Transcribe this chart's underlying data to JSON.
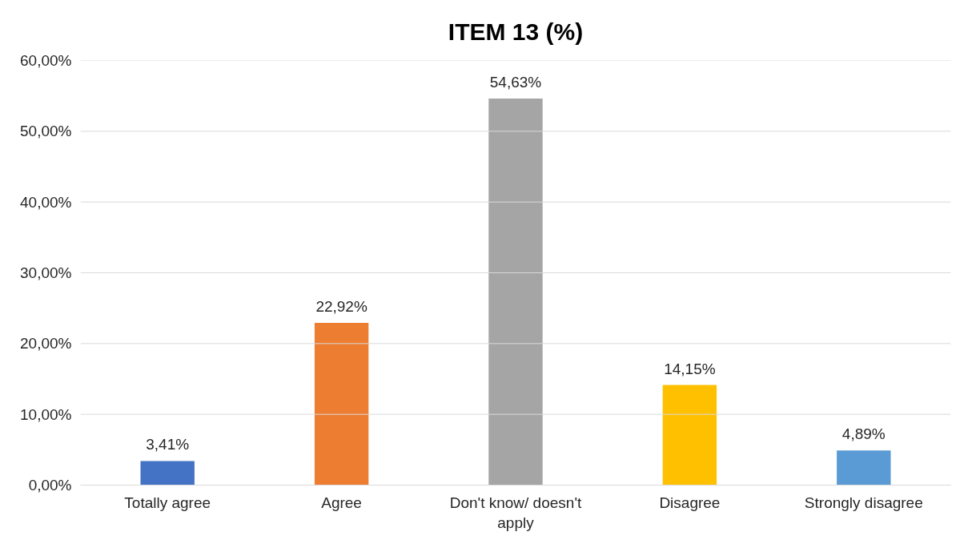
{
  "chart_data": {
    "type": "bar",
    "title": "ITEM 13 (%)",
    "categories": [
      "Totally agree",
      "Agree",
      "Don't know/ doesn't apply",
      "Disagree",
      "Strongly disagree"
    ],
    "values": [
      3.41,
      22.92,
      54.63,
      14.15,
      4.89
    ],
    "colors": [
      "#4472c4",
      "#ed7d31",
      "#a5a5a5",
      "#ffc000",
      "#5b9bd5"
    ],
    "value_labels": [
      "3,41%",
      "22,92%",
      "54,63%",
      "14,15%",
      "4,89%"
    ],
    "ylim": [
      0,
      60
    ],
    "yticks": [
      {
        "value": 0,
        "label": "0,00%"
      },
      {
        "value": 10,
        "label": "10,00%"
      },
      {
        "value": 20,
        "label": "20,00%"
      },
      {
        "value": 30,
        "label": "30,00%"
      },
      {
        "value": 40,
        "label": "40,00%"
      },
      {
        "value": 50,
        "label": "50,00%"
      },
      {
        "value": 60,
        "label": "60,00%"
      }
    ],
    "grid": "y"
  }
}
